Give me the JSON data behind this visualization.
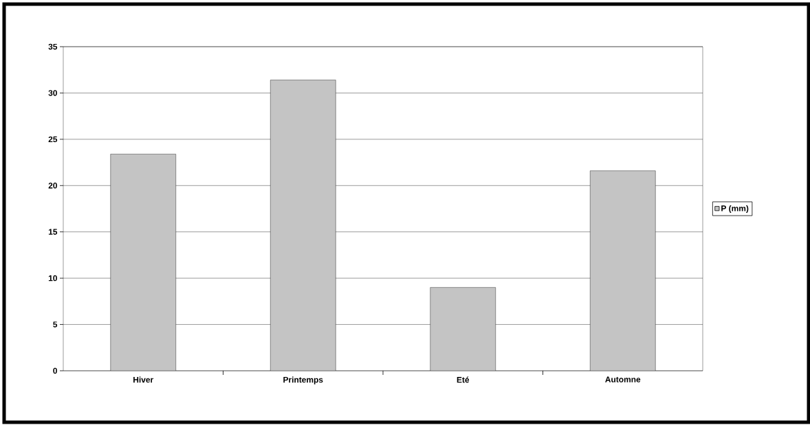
{
  "chart_data": {
    "type": "bar",
    "categories": [
      "Hiver",
      "Printemps",
      "Eté",
      "Automne"
    ],
    "series": [
      {
        "name": "P (mm)",
        "color": "#c4c4c4",
        "values": [
          23.4,
          31.4,
          9.0,
          21.6
        ]
      }
    ],
    "ylim": [
      0,
      35
    ],
    "yticks": [
      0,
      5,
      10,
      15,
      20,
      25,
      30,
      35
    ],
    "grid": "y",
    "legend": "right"
  }
}
